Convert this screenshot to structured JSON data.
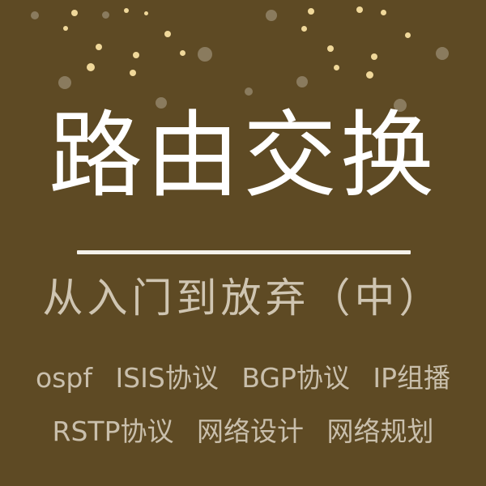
{
  "cover": {
    "title": "路由交换",
    "subtitle": "从入门到放弃（中）",
    "topics_line1": [
      "ospf",
      "ISIS协议",
      "BGP协议",
      "IP组播"
    ],
    "topics_line2": [
      "RSTP协议",
      "网络设计",
      "网络规划"
    ]
  },
  "colors": {
    "background": "#5e4a24",
    "title": "#ffffff",
    "text": "#cfc5b2",
    "dot_bright": "#f0d89a",
    "dot_dim": "#8a7b5e"
  }
}
